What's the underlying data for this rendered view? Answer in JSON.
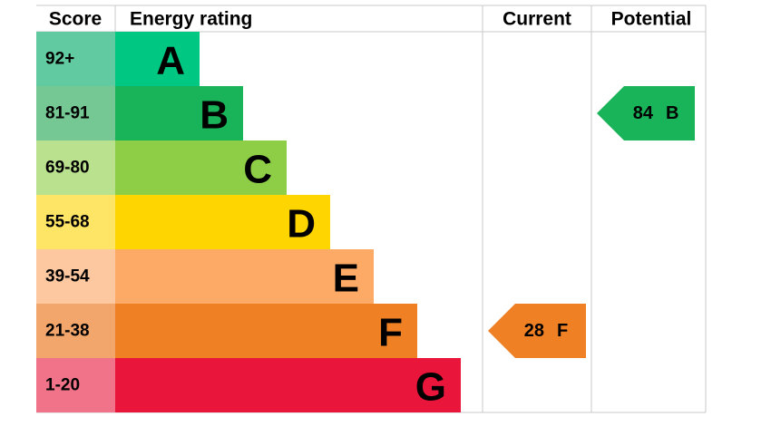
{
  "chart_data": {
    "type": "epc",
    "headers": {
      "score": "Score",
      "rating": "Energy rating",
      "current": "Current",
      "potential": "Potential"
    },
    "bands": [
      {
        "score": "92+",
        "letter": "A",
        "color": "#00c781",
        "score_color": "#62caa0"
      },
      {
        "score": "81-91",
        "letter": "B",
        "color": "#19b459",
        "score_color": "#75c893"
      },
      {
        "score": "69-80",
        "letter": "C",
        "color": "#8dce46",
        "score_color": "#b9e18e"
      },
      {
        "score": "55-68",
        "letter": "D",
        "color": "#ffd500",
        "score_color": "#ffe566"
      },
      {
        "score": "39-54",
        "letter": "E",
        "color": "#fcaa65",
        "score_color": "#fdc8a0"
      },
      {
        "score": "21-38",
        "letter": "F",
        "color": "#ef8023",
        "score_color": "#f3a66b"
      },
      {
        "score": "1-20",
        "letter": "G",
        "color": "#e9153b",
        "score_color": "#f07389"
      }
    ],
    "current": {
      "value": 28,
      "rating": "F"
    },
    "potential": {
      "value": 84,
      "rating": "B"
    }
  }
}
